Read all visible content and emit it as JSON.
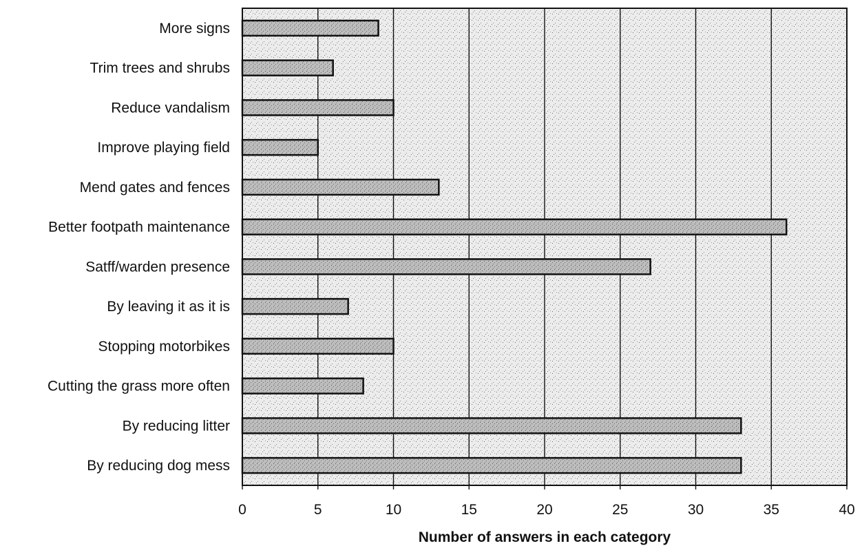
{
  "chart_data": {
    "type": "bar",
    "orientation": "horizontal",
    "title": "",
    "xlabel": "Number of answers in each category",
    "ylabel": "",
    "xlim": [
      0,
      40
    ],
    "xticks": [
      0,
      5,
      10,
      15,
      20,
      25,
      30,
      35,
      40
    ],
    "categories": [
      "More signs",
      "Trim trees and shrubs",
      "Reduce vandalism",
      "Improve playing field",
      "Mend gates and fences",
      "Better footpath maintenance",
      "Satff/warden presence",
      "By leaving it as it is",
      "Stopping motorbikes",
      "Cutting the grass more often",
      "By reducing litter",
      "By reducing dog mess"
    ],
    "values": [
      9,
      6,
      10,
      5,
      13,
      36,
      27,
      7,
      10,
      8,
      33,
      33
    ],
    "grid": "vertical",
    "legend": "none",
    "colors": {
      "plot_background": "#eeeeee",
      "bar_fill": "#b8b8b8",
      "bar_outline": "#111111",
      "gridline": "#111111"
    }
  }
}
